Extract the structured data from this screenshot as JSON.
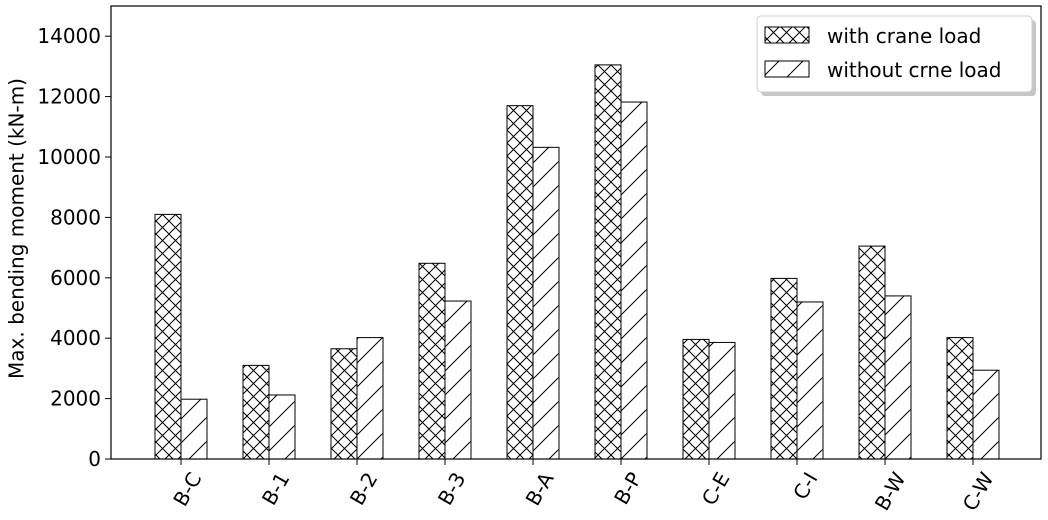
{
  "chart_data": {
    "type": "bar",
    "title": "",
    "xlabel": "",
    "ylabel": "Max. bending moment (kN-m)",
    "ylim": [
      0,
      15000
    ],
    "yticks": [
      0,
      2000,
      4000,
      6000,
      8000,
      10000,
      12000,
      14000
    ],
    "categories": [
      "B-C",
      "B-1",
      "B-2",
      "B-3",
      "B-A",
      "B-P",
      "C-E",
      "C-I",
      "B-W",
      "C-W"
    ],
    "series": [
      {
        "name": "with crane load",
        "pattern": "crosshatch",
        "values": [
          8100,
          3100,
          3650,
          6480,
          11700,
          13050,
          3960,
          5980,
          7050,
          4020
        ]
      },
      {
        "name": "without crne load",
        "pattern": "diagonal",
        "values": [
          1980,
          2120,
          4020,
          5230,
          10320,
          11820,
          3860,
          5200,
          5400,
          2940
        ]
      }
    ],
    "legend": {
      "position": "top-right"
    },
    "grid": false,
    "colors": {
      "bar_fill": "#ffffff",
      "bar_edge": "#000000",
      "hatch": "#000000"
    }
  }
}
